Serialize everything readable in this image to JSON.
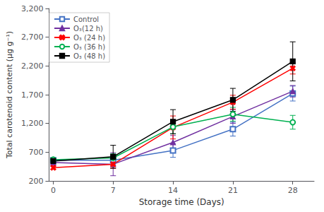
{
  "chart_data": {
    "type": "line",
    "xlabel": "Storage time (Days)",
    "ylabel": "Total carotenoid content (µg g⁻¹)",
    "x": [
      0,
      7,
      14,
      21,
      28
    ],
    "xlim": [
      -0.5,
      30.5
    ],
    "xticks": [
      0,
      7,
      14,
      21,
      28
    ],
    "ylim": [
      200,
      3200
    ],
    "yticks": [
      200,
      700,
      1200,
      1700,
      2200,
      2700,
      3200
    ],
    "grid": false,
    "legend": "upper left",
    "series": [
      {
        "name": "Control",
        "color": "#4472C4",
        "marker": "square_open",
        "line_style": "solid",
        "values": [
          560,
          560,
          730,
          1100,
          1720
        ],
        "errors": [
          30,
          70,
          120,
          120,
          130
        ]
      },
      {
        "name": "O₃(12 h)",
        "color": "#7030A0",
        "marker": "triangle",
        "line_style": "solid",
        "values": [
          520,
          490,
          870,
          1320,
          1760
        ],
        "errors": [
          30,
          200,
          120,
          120,
          100
        ]
      },
      {
        "name": "O₃ (24 h)",
        "color": "#FF0000",
        "marker": "cross",
        "line_style": "solid",
        "values": [
          430,
          490,
          1130,
          1570,
          2160
        ],
        "errors": [
          30,
          70,
          200,
          120,
          100
        ]
      },
      {
        "name": "O₃ (36 h)",
        "color": "#00B050",
        "marker": "circle_open",
        "line_style": "solid",
        "values": [
          570,
          600,
          1140,
          1360,
          1220
        ],
        "errors": [
          30,
          70,
          120,
          120,
          120
        ]
      },
      {
        "name": "O₃ (48 h)",
        "color": "#000000",
        "marker": "square",
        "line_style": "solid",
        "values": [
          545,
          620,
          1230,
          1610,
          2280
        ],
        "errors": [
          30,
          200,
          210,
          200,
          340
        ]
      }
    ]
  }
}
